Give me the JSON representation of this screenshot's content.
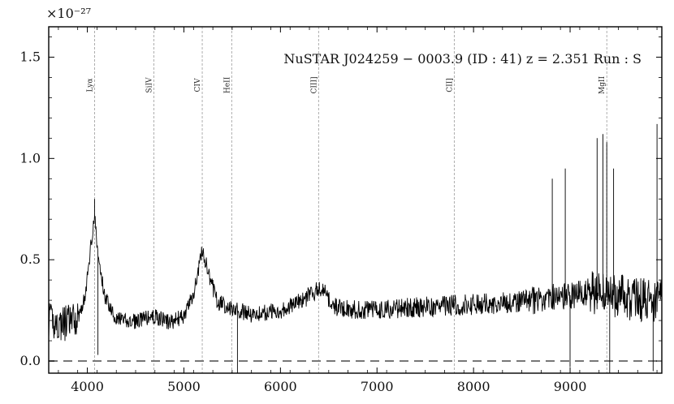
{
  "chart_data": {
    "type": "line",
    "title": "NuSTAR J024259 − 0003.9 (ID : 41)   z = 2.351   Run : S",
    "xlabel": "",
    "ylabel": "",
    "y_exponent_label": "×10⁻²⁷",
    "xlim": [
      3600,
      9950
    ],
    "ylim": [
      -0.06,
      1.65
    ],
    "x_ticks": [
      4000,
      5000,
      6000,
      7000,
      8000,
      9000
    ],
    "x_tick_labels": [
      "4000",
      "5000",
      "6000",
      "7000",
      "8000",
      "9000"
    ],
    "y_ticks": [
      0.0,
      0.5,
      1.0,
      1.5
    ],
    "y_tick_labels": [
      "0.0",
      "0.5",
      "1.0",
      "1.5"
    ],
    "zero_line": 0.0,
    "emission_lines": [
      {
        "label": "Lyα",
        "x": 4075
      },
      {
        "label": "SiIV",
        "x": 4690
      },
      {
        "label": "CIV",
        "x": 5190
      },
      {
        "label": "HeII",
        "x": 5495
      },
      {
        "label": "CIII]",
        "x": 6395
      },
      {
        "label": "CII]",
        "x": 7800
      },
      {
        "label": "MgII",
        "x": 9380
      }
    ],
    "continuum_anchors": [
      [
        3600,
        0.2
      ],
      [
        3700,
        0.18
      ],
      [
        3800,
        0.19
      ],
      [
        3900,
        0.21
      ],
      [
        3980,
        0.32
      ],
      [
        4030,
        0.55
      ],
      [
        4075,
        0.72
      ],
      [
        4110,
        0.52
      ],
      [
        4180,
        0.32
      ],
      [
        4300,
        0.21
      ],
      [
        4450,
        0.19
      ],
      [
        4600,
        0.21
      ],
      [
        4700,
        0.22
      ],
      [
        4850,
        0.19
      ],
      [
        5000,
        0.22
      ],
      [
        5100,
        0.33
      ],
      [
        5190,
        0.55
      ],
      [
        5260,
        0.42
      ],
      [
        5350,
        0.29
      ],
      [
        5500,
        0.26
      ],
      [
        5700,
        0.23
      ],
      [
        6000,
        0.25
      ],
      [
        6200,
        0.29
      ],
      [
        6350,
        0.34
      ],
      [
        6420,
        0.36
      ],
      [
        6550,
        0.27
      ],
      [
        6800,
        0.25
      ],
      [
        7200,
        0.26
      ],
      [
        7600,
        0.27
      ],
      [
        8000,
        0.28
      ],
      [
        8400,
        0.29
      ],
      [
        8800,
        0.31
      ],
      [
        9200,
        0.34
      ],
      [
        9400,
        0.33
      ],
      [
        9700,
        0.3
      ],
      [
        9950,
        0.3
      ]
    ],
    "spikes": [
      [
        4075,
        0.8
      ],
      [
        4110,
        0.03
      ],
      [
        5555,
        -0.06
      ],
      [
        8815,
        0.9
      ],
      [
        8950,
        0.95
      ],
      [
        9000,
        -0.03
      ],
      [
        9280,
        1.1
      ],
      [
        9340,
        1.12
      ],
      [
        9380,
        1.08
      ],
      [
        9410,
        -0.06
      ],
      [
        9450,
        0.95
      ],
      [
        9860,
        -0.05
      ],
      [
        9900,
        1.17
      ]
    ],
    "grid": false,
    "legend": "none"
  }
}
